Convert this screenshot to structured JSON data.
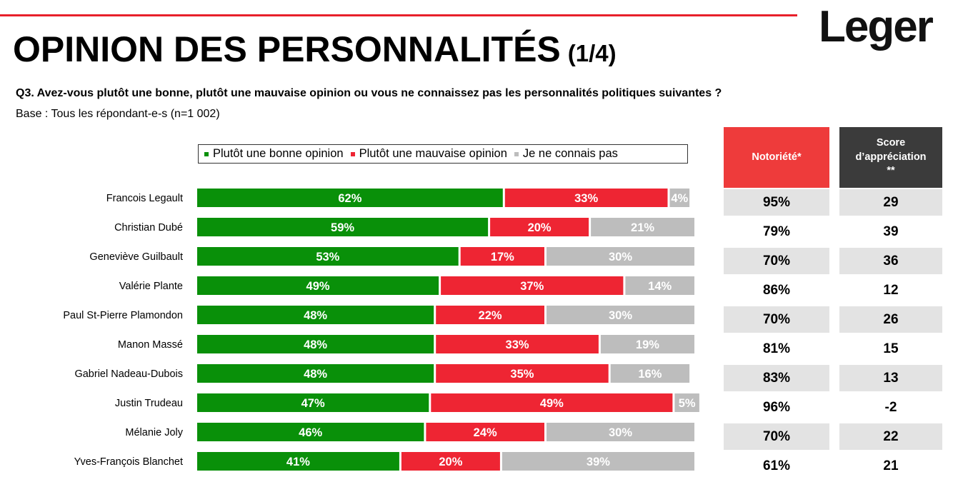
{
  "header": {
    "title": "OPINION DES PERSONNALITÉS",
    "title_sub": "(1/4)",
    "logo_text": "Leger",
    "question": "Q3. Avez-vous plutôt une bonne, plutôt une mauvaise opinion ou vous ne connaissez pas les personnalités politiques suivantes ?",
    "base": "Base : Tous les répondant-e-s (n=1 002)"
  },
  "colors": {
    "good": "#099009",
    "bad": "#ee2533",
    "unknown": "#bdbdbd",
    "accent": "#e8202a",
    "notoriety_header": "#ee3b3b",
    "score_header": "#3b3b3b"
  },
  "columns": {
    "notoriety_header": "Notoriété*",
    "score_header_line1": "Score",
    "score_header_line2": "d’appréciation",
    "score_header_line3": "**"
  },
  "chart_data": {
    "type": "bar",
    "stacked": true,
    "orientation": "horizontal",
    "categories": [
      "Francois Legault",
      "Christian Dubé",
      "Geneviève Guilbault",
      "Valérie Plante",
      "Paul St-Pierre Plamondon",
      "Manon Massé",
      "Gabriel Nadeau-Dubois",
      "Justin Trudeau",
      "Mélanie Joly",
      "Yves-François Blanchet"
    ],
    "series": [
      {
        "name": "Plutôt une bonne opinion",
        "values": [
          62,
          59,
          53,
          49,
          48,
          48,
          48,
          47,
          46,
          41
        ]
      },
      {
        "name": "Plutôt une mauvaise opinion",
        "values": [
          33,
          20,
          17,
          37,
          22,
          33,
          35,
          49,
          24,
          20
        ]
      },
      {
        "name": "Je ne connais pas",
        "values": [
          4,
          21,
          30,
          14,
          30,
          19,
          16,
          5,
          30,
          39
        ]
      }
    ],
    "value_labels": [
      [
        "62%",
        "33%",
        "4%"
      ],
      [
        "59%",
        "20%",
        "21%"
      ],
      [
        "53%",
        "17%",
        "30%"
      ],
      [
        "49%",
        "37%",
        "14%"
      ],
      [
        "48%",
        "22%",
        "30%"
      ],
      [
        "48%",
        "33%",
        "19%"
      ],
      [
        "48%",
        "35%",
        "16%"
      ],
      [
        "47%",
        "49%",
        "5%"
      ],
      [
        "46%",
        "24%",
        "30%"
      ],
      [
        "41%",
        "20%",
        "39%"
      ]
    ],
    "notoriety": [
      "95%",
      "79%",
      "70%",
      "86%",
      "70%",
      "81%",
      "83%",
      "96%",
      "70%",
      "61%"
    ],
    "score": [
      "29",
      "39",
      "36",
      "12",
      "26",
      "15",
      "13",
      "-2",
      "22",
      "21"
    ],
    "legend_position": "top"
  }
}
